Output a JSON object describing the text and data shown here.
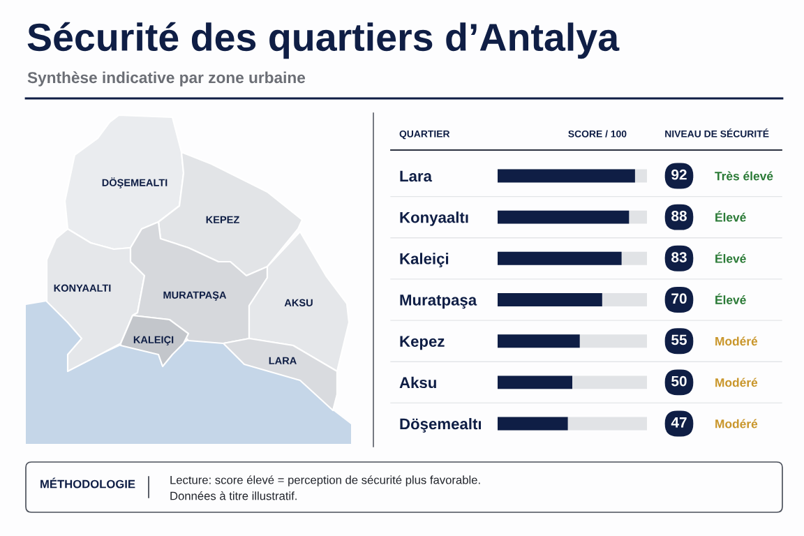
{
  "chart_data": [
    {
      "type": "other",
      "title": "Sécurité des quartiers d’Antalya",
      "subtitle": "Synthèse indicative par zone urbaine",
      "categories": [
        "DÖŞEMEALTI",
        "KEPEZ",
        "KONYAALTI",
        "MURATPAŞA",
        "AKSU",
        "KALEIÇI",
        "LARA"
      ]
    },
    {
      "type": "bar",
      "orientation": "horizontal",
      "xlabel": "SCORE / 100",
      "ylabel": "QUARTIER",
      "y2label": "NIVEAU DE SÉCURITÉ",
      "categories": [
        "Lara",
        "Konyaaltı",
        "Kaleiçi",
        "Muratpaşa",
        "Kepez",
        "Aksu",
        "Döşemealtı"
      ],
      "values": [
        92,
        88,
        83,
        70,
        55,
        50,
        47
      ],
      "color": "#0f1e45",
      "xlim": [
        0,
        100
      ],
      "data_labels": true,
      "y2_categories": [
        "Très élevé",
        "Élevé",
        "Élevé",
        "Élevé",
        "Modéré",
        "Modéré",
        "Modéré"
      ],
      "tick_labels": "y",
      "annotations": [
        "MÉTHODOLOGIE",
        "Lecture: score élevé = perception de sécurité plus favorable.",
        "Données à titre illustratif."
      ]
    }
  ]
}
